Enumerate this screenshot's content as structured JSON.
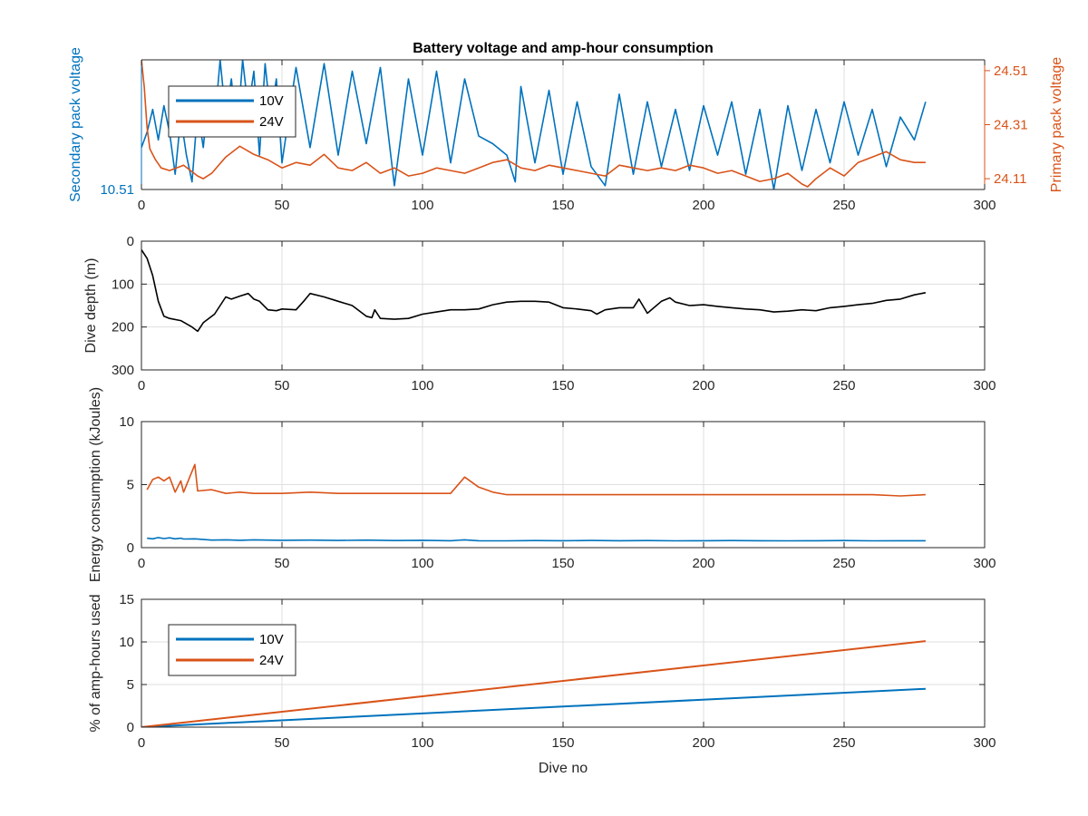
{
  "colors": {
    "blue": "#0072BD",
    "orange": "#D95319",
    "black": "#000000",
    "axis": "#262626",
    "grid": "#dfdfdf"
  },
  "chart_data": [
    {
      "type": "line",
      "title": "Battery voltage and amp-hour consumption",
      "xlabel": "",
      "ylabel": "Secondary pack voltage",
      "ylabel_right": "Primary pack voltage",
      "xlim": [
        0,
        300
      ],
      "xticks": [
        "0",
        "50",
        "100",
        "150",
        "200",
        "250",
        "300"
      ],
      "yticks_left": [
        "10.51"
      ],
      "yticks_right": [
        "24.11",
        "24.31",
        "24.51"
      ],
      "ylim_left": [
        10.51,
        10.85
      ],
      "ylim_right": [
        24.07,
        24.55
      ],
      "grid": true,
      "legend": {
        "position": "top-left",
        "entries": [
          "10V",
          "24V"
        ]
      },
      "series": [
        {
          "name": "10V",
          "axis": "left",
          "color": "blue",
          "x": [
            0,
            2,
            4,
            6,
            8,
            10,
            12,
            14,
            16,
            18,
            20,
            22,
            24,
            26,
            28,
            30,
            32,
            34,
            36,
            38,
            40,
            42,
            44,
            46,
            48,
            50,
            55,
            60,
            65,
            70,
            75,
            80,
            85,
            90,
            95,
            100,
            105,
            110,
            115,
            120,
            125,
            130,
            133,
            135,
            140,
            145,
            150,
            155,
            160,
            165,
            170,
            175,
            180,
            185,
            190,
            195,
            200,
            205,
            210,
            215,
            220,
            225,
            230,
            235,
            240,
            245,
            250,
            255,
            260,
            265,
            270,
            275,
            279
          ],
          "y": [
            10.62,
            10.66,
            10.72,
            10.64,
            10.73,
            10.66,
            10.55,
            10.7,
            10.6,
            10.53,
            10.72,
            10.62,
            10.77,
            10.68,
            10.85,
            10.7,
            10.8,
            10.65,
            10.85,
            10.72,
            10.82,
            10.6,
            10.84,
            10.7,
            10.8,
            10.58,
            10.83,
            10.62,
            10.84,
            10.6,
            10.82,
            10.63,
            10.83,
            10.52,
            10.8,
            10.6,
            10.82,
            10.58,
            10.8,
            10.65,
            10.63,
            10.6,
            10.53,
            10.78,
            10.58,
            10.77,
            10.55,
            10.74,
            10.57,
            10.52,
            10.76,
            10.55,
            10.74,
            10.57,
            10.72,
            10.56,
            10.73,
            10.6,
            10.74,
            10.55,
            10.72,
            10.51,
            10.73,
            10.56,
            10.72,
            10.58,
            10.74,
            10.6,
            10.72,
            10.57,
            10.7,
            10.64,
            10.74
          ]
        },
        {
          "name": "24V",
          "axis": "right",
          "color": "orange",
          "x": [
            0,
            1,
            2,
            3,
            5,
            7,
            10,
            15,
            20,
            22,
            25,
            30,
            35,
            40,
            45,
            50,
            55,
            60,
            65,
            70,
            75,
            80,
            85,
            90,
            95,
            100,
            105,
            110,
            115,
            120,
            125,
            130,
            135,
            140,
            145,
            150,
            155,
            160,
            165,
            170,
            175,
            180,
            185,
            190,
            195,
            200,
            205,
            210,
            215,
            220,
            225,
            230,
            235,
            237,
            240,
            245,
            250,
            255,
            260,
            265,
            270,
            275,
            279
          ],
          "y": [
            24.55,
            24.45,
            24.3,
            24.22,
            24.18,
            24.15,
            24.14,
            24.16,
            24.12,
            24.11,
            24.13,
            24.19,
            24.23,
            24.2,
            24.18,
            24.15,
            24.17,
            24.16,
            24.2,
            24.15,
            24.14,
            24.17,
            24.13,
            24.15,
            24.12,
            24.13,
            24.15,
            24.14,
            24.13,
            24.15,
            24.17,
            24.18,
            24.15,
            24.14,
            24.16,
            24.15,
            24.14,
            24.13,
            24.12,
            24.16,
            24.15,
            24.14,
            24.15,
            24.14,
            24.16,
            24.15,
            24.13,
            24.14,
            24.12,
            24.1,
            24.11,
            24.13,
            24.09,
            24.08,
            24.11,
            24.15,
            24.12,
            24.17,
            24.19,
            24.21,
            24.18,
            24.17,
            24.17
          ]
        }
      ]
    },
    {
      "type": "line",
      "title": "",
      "xlabel": "",
      "ylabel": "Dive depth (m)",
      "xlim": [
        0,
        300
      ],
      "ylim": [
        0,
        300
      ],
      "y_reversed": true,
      "xticks": [
        "0",
        "50",
        "100",
        "150",
        "200",
        "250",
        "300"
      ],
      "yticks": [
        "0",
        "100",
        "200",
        "300"
      ],
      "grid": true,
      "series": [
        {
          "name": "",
          "color": "black",
          "x": [
            0,
            2,
            4,
            5,
            6,
            8,
            10,
            14,
            18,
            20,
            22,
            26,
            28,
            30,
            32,
            35,
            38,
            40,
            42,
            45,
            48,
            50,
            55,
            58,
            60,
            65,
            70,
            75,
            80,
            82,
            83,
            85,
            90,
            95,
            100,
            105,
            110,
            115,
            120,
            125,
            130,
            135,
            140,
            145,
            150,
            155,
            160,
            162,
            165,
            170,
            175,
            177,
            180,
            185,
            188,
            190,
            195,
            200,
            205,
            210,
            215,
            220,
            225,
            230,
            235,
            240,
            245,
            250,
            255,
            260,
            265,
            270,
            275,
            279
          ],
          "y": [
            20,
            40,
            80,
            110,
            140,
            175,
            180,
            185,
            200,
            210,
            190,
            170,
            150,
            130,
            135,
            128,
            122,
            135,
            140,
            160,
            162,
            158,
            160,
            138,
            122,
            130,
            140,
            150,
            175,
            178,
            160,
            180,
            182,
            180,
            170,
            165,
            160,
            160,
            158,
            148,
            142,
            140,
            140,
            142,
            155,
            158,
            162,
            170,
            160,
            155,
            155,
            135,
            168,
            140,
            132,
            142,
            150,
            148,
            152,
            155,
            158,
            160,
            165,
            163,
            160,
            162,
            155,
            152,
            148,
            145,
            138,
            135,
            125,
            120
          ]
        }
      ]
    },
    {
      "type": "line",
      "title": "",
      "xlabel": "",
      "ylabel": "Energy consumption (kJoules)",
      "xlim": [
        0,
        300
      ],
      "ylim": [
        0,
        10
      ],
      "xticks": [
        "0",
        "50",
        "100",
        "150",
        "200",
        "250",
        "300"
      ],
      "yticks": [
        "0",
        "5",
        "10"
      ],
      "grid": true,
      "series": [
        {
          "name": "10V",
          "color": "blue",
          "x": [
            2,
            4,
            6,
            8,
            10,
            12,
            14,
            15,
            19,
            25,
            30,
            35,
            40,
            50,
            60,
            70,
            80,
            90,
            100,
            110,
            115,
            120,
            130,
            140,
            150,
            160,
            170,
            180,
            190,
            200,
            210,
            220,
            230,
            240,
            250,
            260,
            270,
            279
          ],
          "y": [
            0.75,
            0.7,
            0.8,
            0.72,
            0.78,
            0.7,
            0.75,
            0.68,
            0.7,
            0.6,
            0.62,
            0.58,
            0.62,
            0.58,
            0.6,
            0.57,
            0.6,
            0.56,
            0.58,
            0.55,
            0.62,
            0.55,
            0.54,
            0.56,
            0.55,
            0.57,
            0.55,
            0.56,
            0.54,
            0.55,
            0.56,
            0.55,
            0.54,
            0.55,
            0.56,
            0.54,
            0.55,
            0.55
          ]
        },
        {
          "name": "24V",
          "color": "orange",
          "x": [
            2,
            4,
            6,
            8,
            10,
            12,
            14,
            15,
            19,
            20,
            25,
            30,
            35,
            40,
            50,
            60,
            70,
            80,
            90,
            100,
            110,
            115,
            120,
            125,
            130,
            140,
            150,
            160,
            170,
            180,
            190,
            200,
            210,
            220,
            230,
            240,
            250,
            260,
            270,
            279
          ],
          "y": [
            4.6,
            5.4,
            5.6,
            5.3,
            5.6,
            4.4,
            5.3,
            4.4,
            6.6,
            4.5,
            4.6,
            4.3,
            4.4,
            4.3,
            4.3,
            4.4,
            4.3,
            4.3,
            4.3,
            4.3,
            4.3,
            5.6,
            4.8,
            4.4,
            4.2,
            4.2,
            4.2,
            4.2,
            4.2,
            4.2,
            4.2,
            4.2,
            4.2,
            4.2,
            4.2,
            4.2,
            4.2,
            4.2,
            4.1,
            4.2
          ]
        }
      ]
    },
    {
      "type": "line",
      "title": "",
      "xlabel": "Dive no",
      "ylabel": "% of amp-hours used",
      "xlim": [
        0,
        300
      ],
      "ylim": [
        0,
        15
      ],
      "xticks": [
        "0",
        "50",
        "100",
        "150",
        "200",
        "250",
        "300"
      ],
      "yticks": [
        "0",
        "5",
        "10",
        "15"
      ],
      "grid": true,
      "legend": {
        "position": "top-left",
        "entries": [
          "10V",
          "24V"
        ]
      },
      "series": [
        {
          "name": "10V",
          "color": "blue",
          "x": [
            0,
            279
          ],
          "y": [
            0,
            4.5
          ]
        },
        {
          "name": "24V",
          "color": "orange",
          "x": [
            0,
            279
          ],
          "y": [
            0,
            10.1
          ]
        }
      ]
    }
  ]
}
